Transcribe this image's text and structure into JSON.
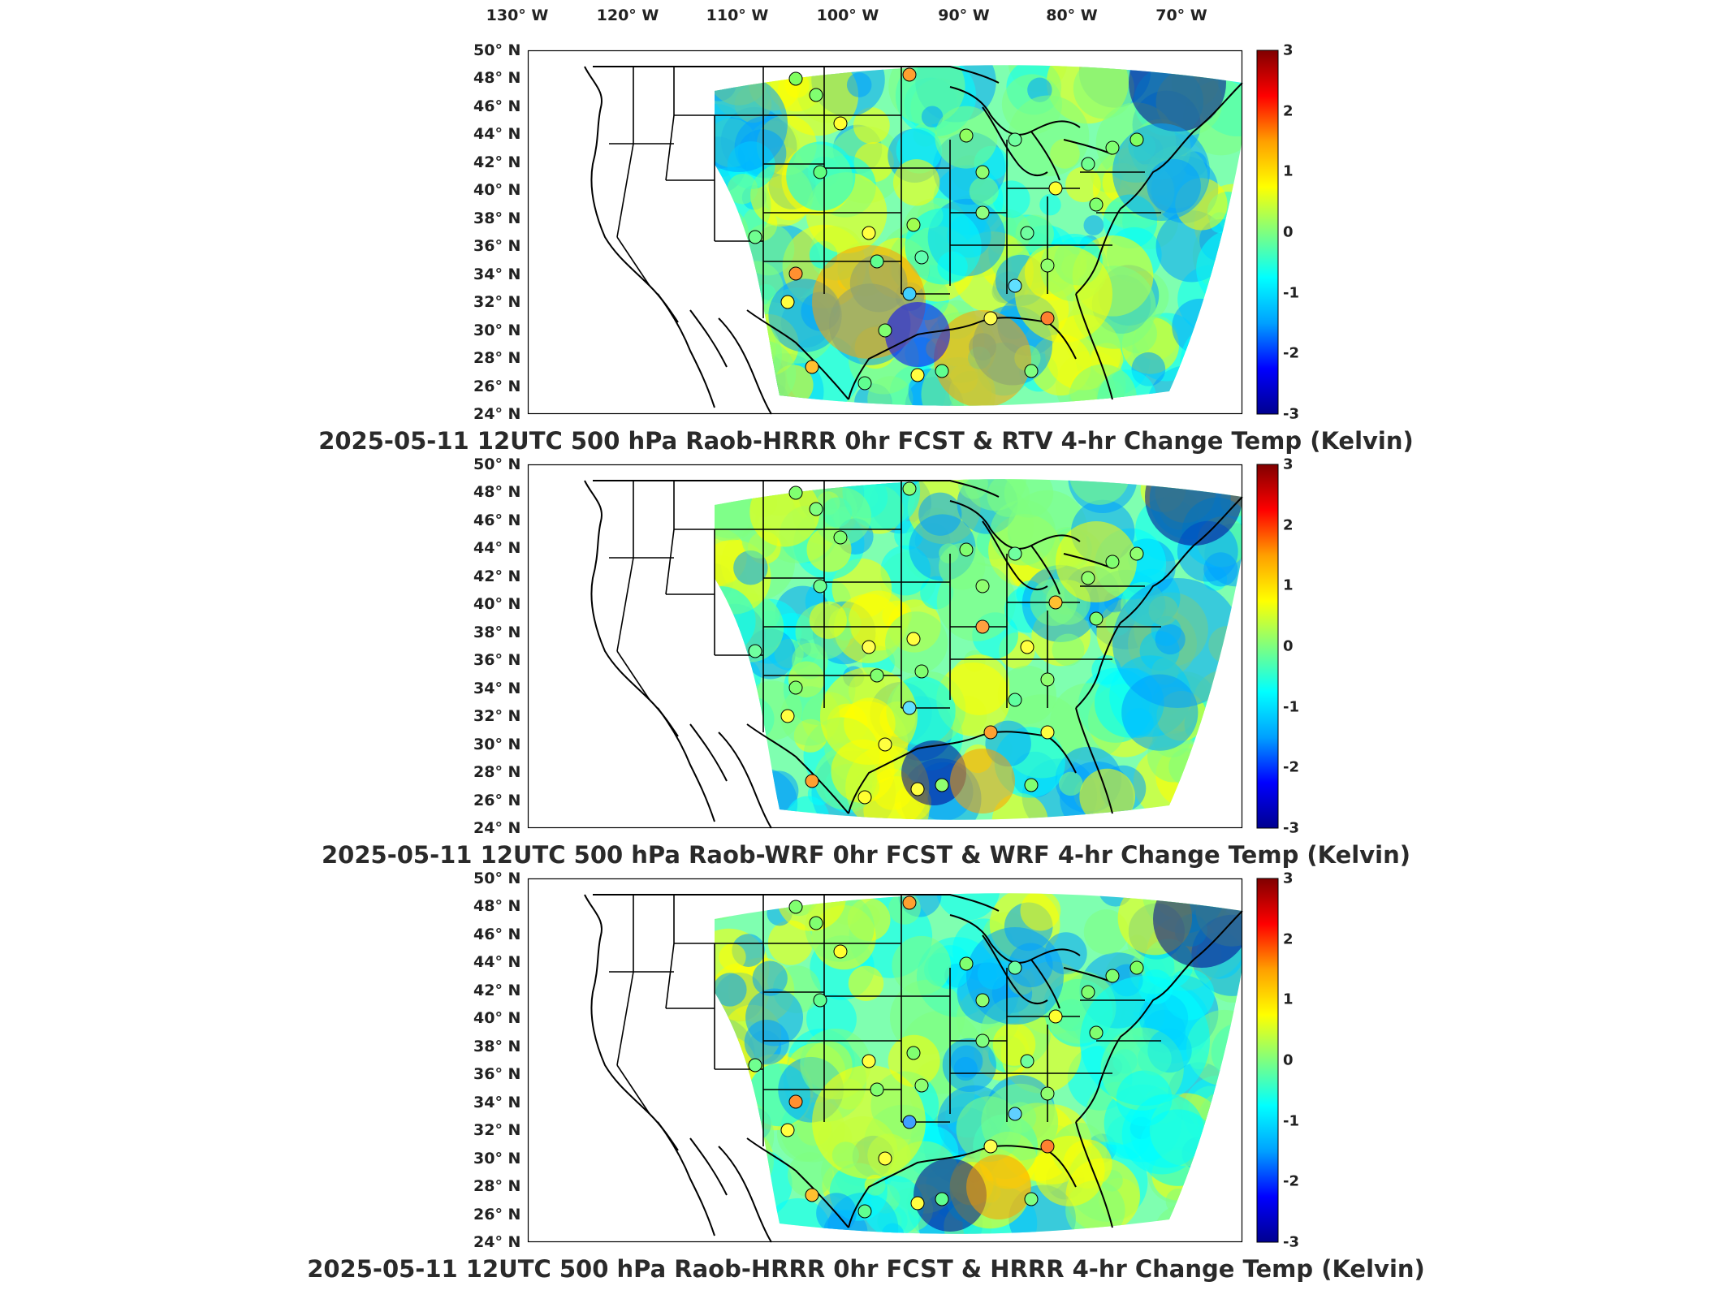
{
  "lon_labels": [
    "130° W",
    "120° W",
    "110° W",
    "100° W",
    "90° W",
    "80° W",
    "70° W"
  ],
  "lat_labels": [
    "50° N",
    "48° N",
    "46° N",
    "44° N",
    "42° N",
    "40° N",
    "38° N",
    "36° N",
    "34° N",
    "32° N",
    "30° N",
    "28° N",
    "26° N",
    "24° N"
  ],
  "colorbar": {
    "ticks": [
      "3",
      "2",
      "1",
      "0",
      "-1",
      "-2",
      "-3"
    ],
    "range": [
      -3,
      3
    ],
    "colors": [
      "#00008f",
      "#0000ff",
      "#00a0ff",
      "#00ffff",
      "#7fff7f",
      "#ffff00",
      "#ff9f00",
      "#ff0000",
      "#800000"
    ]
  },
  "panels": [
    {
      "title": "2025-05-11 12UTC 500 hPa Raob-HRRR 0hr FCST & RTV 4-hr Change Temp (Kelvin)"
    },
    {
      "title": "2025-05-11 12UTC 500 hPa Raob-WRF 0hr FCST & WRF 4-hr Change Temp (Kelvin)"
    },
    {
      "title": "2025-05-11 12UTC 500 hPa Raob-HRRR 0hr FCST & HRRR 4-hr Change Temp (Kelvin)"
    }
  ],
  "colors": {
    "frame": "#000000",
    "coast": "#000000",
    "title_text": "#2a2a2a"
  }
}
